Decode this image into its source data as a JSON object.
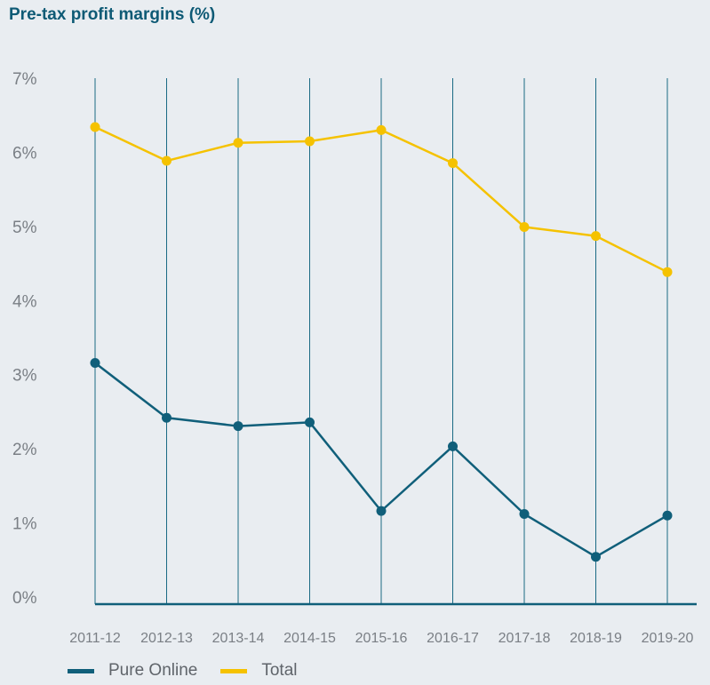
{
  "chart_data": {
    "type": "line",
    "title": "Pre-tax profit margins (%)",
    "categories": [
      "2011-12",
      "2012-13",
      "2013-14",
      "2014-15",
      "2015-16",
      "2016-17",
      "2017-18",
      "2018-19",
      "2019-20"
    ],
    "ylim": [
      0,
      7
    ],
    "yticks": [
      0,
      1,
      2,
      3,
      4,
      5,
      6,
      7
    ],
    "ytick_labels": [
      "0%",
      "1%",
      "2%",
      "3%",
      "4%",
      "5%",
      "6%",
      "7%"
    ],
    "xlabel": "",
    "ylabel": "",
    "grid": "vertical",
    "legend": "bottom-left",
    "series": [
      {
        "name": "Total",
        "color": "#f5c200",
        "values": [
          6.35,
          5.9,
          6.14,
          6.16,
          6.31,
          5.87,
          5.02,
          4.9,
          4.42
        ]
      },
      {
        "name": "Pure Online",
        "color": "#105f7a",
        "values": [
          3.21,
          2.48,
          2.37,
          2.42,
          1.24,
          2.1,
          1.2,
          0.63,
          1.18
        ]
      }
    ]
  }
}
